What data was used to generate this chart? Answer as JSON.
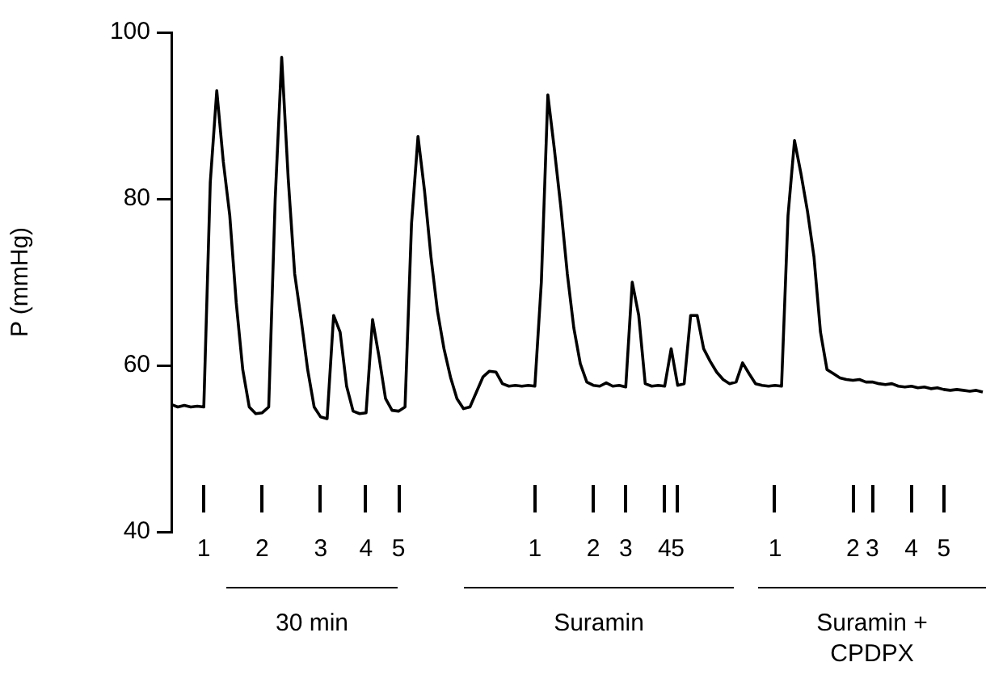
{
  "chart_data": {
    "type": "line",
    "ylabel": "P (mmHg)",
    "categories": [
      null,
      null,
      null,
      null,
      null,
      "1",
      null,
      null,
      null,
      null,
      null,
      null,
      null,
      null,
      "2",
      null,
      null,
      null,
      null,
      null,
      null,
      null,
      null,
      "3",
      null,
      null,
      null,
      null,
      null,
      null,
      "4",
      null,
      null,
      null,
      null,
      "5",
      null,
      null,
      null,
      null,
      null,
      null,
      null,
      null,
      null,
      null,
      null,
      null,
      null,
      null,
      null,
      null,
      null,
      null,
      null,
      null,
      "1",
      null,
      null,
      null,
      null,
      null,
      null,
      null,
      null,
      "2",
      null,
      null,
      null,
      null,
      "3",
      null,
      null,
      null,
      null,
      null,
      "4",
      null,
      "5",
      null,
      null,
      null,
      null,
      null,
      null,
      null,
      null,
      null,
      null,
      null,
      null,
      null,
      null,
      "1",
      null,
      null,
      null,
      null,
      null,
      null,
      null,
      null,
      null,
      null,
      null,
      "2",
      null,
      null,
      "3",
      null,
      null,
      null,
      null,
      null,
      "4",
      null,
      null,
      null,
      null,
      "5",
      null,
      null,
      null,
      null,
      null,
      null
    ],
    "series": [
      {
        "color": "#000000",
        "values": [
          55.3,
          55,
          55.2,
          55,
          55.1,
          55,
          82,
          93,
          84.5,
          78,
          67.5,
          59.5,
          55,
          54.2,
          54.3,
          55,
          80,
          97,
          82.5,
          71,
          65.5,
          59.5,
          55,
          53.8,
          53.6,
          66,
          64,
          57.5,
          54.5,
          54.2,
          54.3,
          65.5,
          61,
          56,
          54.6,
          54.5,
          55,
          77,
          87.5,
          81,
          73,
          66.5,
          62,
          58.6,
          56,
          54.8,
          55,
          56.8,
          58.6,
          59.3,
          59.2,
          57.8,
          57.5,
          57.6,
          57.5,
          57.6,
          57.5,
          70,
          92.5,
          86,
          79,
          71,
          64.5,
          60.2,
          58,
          57.6,
          57.5,
          57.9,
          57.5,
          57.6,
          57.4,
          70,
          66,
          57.8,
          57.5,
          57.6,
          57.5,
          62,
          57.6,
          57.8,
          66,
          66,
          62,
          60.5,
          59.2,
          58.3,
          57.8,
          58,
          60.3,
          59,
          57.8,
          57.6,
          57.5,
          57.6,
          57.5,
          78,
          87,
          83,
          78.5,
          73,
          64,
          59.5,
          59,
          58.5,
          58.3,
          58.2,
          58.3,
          58,
          58,
          57.8,
          57.7,
          57.8,
          57.5,
          57.4,
          57.5,
          57.3,
          57.4,
          57.2,
          57.3,
          57.1,
          57,
          57.1,
          57,
          56.9,
          57,
          56.8
        ]
      }
    ],
    "ylim": [
      40,
      100
    ],
    "yticks": [
      40,
      60,
      80,
      100
    ],
    "grid": false,
    "legend": false,
    "marker": "none",
    "line_style": "solid",
    "annotations": [
      "30 min",
      "Suramin",
      "Suramin + CPDPX"
    ]
  }
}
